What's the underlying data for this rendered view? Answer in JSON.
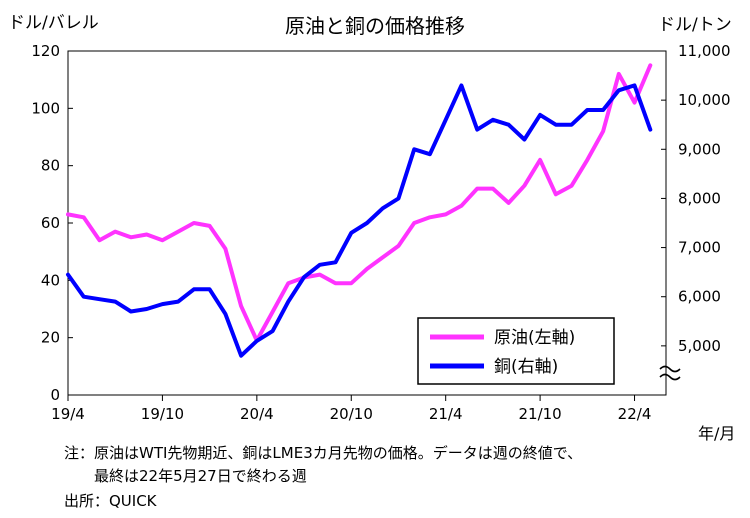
{
  "chart_data": {
    "type": "line",
    "title": "原油と銅の価格推移",
    "left_unit": "ドル/バレル",
    "right_unit": "ドル/トン",
    "x_unit": "年/月",
    "grid": false,
    "legend_position": "bottom-right",
    "left_axis": {
      "ylim": [
        0,
        120
      ],
      "ticks": [
        "0",
        "20",
        "40",
        "60",
        "80",
        "100",
        "120"
      ]
    },
    "right_axis": {
      "ylim": [
        4000,
        11000
      ],
      "axis_break": true,
      "ticks": [
        "5,000",
        "6,000",
        "7,000",
        "8,000",
        "9,000",
        "10,000",
        "11,000"
      ],
      "tick_values": [
        5000,
        6000,
        7000,
        8000,
        9000,
        10000,
        11000
      ]
    },
    "x_ticks": [
      {
        "date": "2019-04",
        "label": "19/4"
      },
      {
        "date": "2019-10",
        "label": "19/10"
      },
      {
        "date": "2020-04",
        "label": "20/4"
      },
      {
        "date": "2020-10",
        "label": "20/10"
      },
      {
        "date": "2021-04",
        "label": "21/4"
      },
      {
        "date": "2021-10",
        "label": "21/10"
      },
      {
        "date": "2022-04",
        "label": "22/4"
      }
    ],
    "x_range": [
      "2019-04",
      "2022-06"
    ],
    "series": [
      {
        "name": "原油(左軸)",
        "axis": "left",
        "color": "#ff33ff",
        "x": [
          "2019-04",
          "2019-05",
          "2019-06",
          "2019-07",
          "2019-08",
          "2019-09",
          "2019-10",
          "2019-11",
          "2019-12",
          "2020-01",
          "2020-02",
          "2020-03",
          "2020-04",
          "2020-05",
          "2020-06",
          "2020-07",
          "2020-08",
          "2020-09",
          "2020-10",
          "2020-11",
          "2020-12",
          "2021-01",
          "2021-02",
          "2021-03",
          "2021-04",
          "2021-05",
          "2021-06",
          "2021-07",
          "2021-08",
          "2021-09",
          "2021-10",
          "2021-11",
          "2021-12",
          "2022-01",
          "2022-02",
          "2022-03",
          "2022-04",
          "2022-05"
        ],
        "y": [
          63,
          62,
          54,
          57,
          55,
          56,
          54,
          57,
          60,
          59,
          51,
          31,
          19,
          29,
          39,
          41,
          42,
          39,
          39,
          44,
          48,
          52,
          60,
          62,
          63,
          66,
          72,
          72,
          67,
          73,
          82,
          70,
          73,
          82,
          92,
          112,
          102,
          115
        ]
      },
      {
        "name": "銅(右軸)",
        "axis": "right",
        "color": "#0000ff",
        "x": [
          "2019-04",
          "2019-05",
          "2019-06",
          "2019-07",
          "2019-08",
          "2019-09",
          "2019-10",
          "2019-11",
          "2019-12",
          "2020-01",
          "2020-02",
          "2020-03",
          "2020-04",
          "2020-05",
          "2020-06",
          "2020-07",
          "2020-08",
          "2020-09",
          "2020-10",
          "2020-11",
          "2020-12",
          "2021-01",
          "2021-02",
          "2021-03",
          "2021-04",
          "2021-05",
          "2021-06",
          "2021-07",
          "2021-08",
          "2021-09",
          "2021-10",
          "2021-11",
          "2021-12",
          "2022-01",
          "2022-02",
          "2022-03",
          "2022-04",
          "2022-05"
        ],
        "y": [
          6450,
          6000,
          5950,
          5900,
          5700,
          5750,
          5850,
          5900,
          6150,
          6150,
          5650,
          4800,
          5100,
          5300,
          5900,
          6400,
          6650,
          6700,
          7300,
          7500,
          7800,
          8000,
          9000,
          8900,
          9600,
          10300,
          9400,
          9600,
          9500,
          9200,
          9700,
          9500,
          9500,
          9800,
          9800,
          10200,
          10300,
          9400
        ]
      }
    ],
    "notes": [
      "注：原油はWTI先物期近、銅はLME3カ月先物の価格。データは週の終値で、",
      "最終は22年5月27日で終わる週"
    ],
    "source": "出所：QUICK"
  }
}
